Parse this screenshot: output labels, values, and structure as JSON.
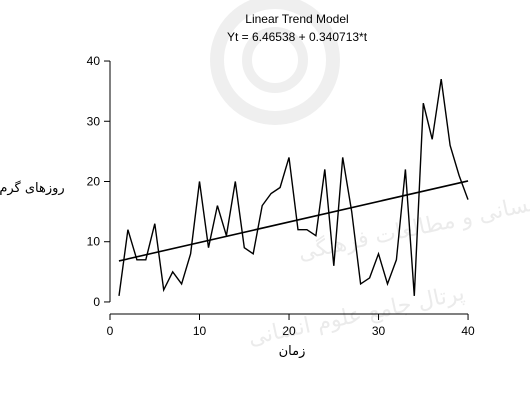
{
  "chart_data": {
    "type": "line",
    "title": "Linear Trend Model",
    "subtitle": "Yt = 6.46538 + 0.340713*t",
    "xlabel": "زمان",
    "ylabel": "روزهای گرم",
    "xlim": [
      0,
      41
    ],
    "ylim": [
      -2,
      41
    ],
    "x_ticks": [
      0,
      10,
      20,
      30,
      40
    ],
    "y_ticks": [
      0,
      10,
      20,
      30,
      40
    ],
    "grid": false,
    "series": [
      {
        "kind": "observed",
        "x": [
          1,
          2,
          3,
          4,
          5,
          6,
          7,
          8,
          9,
          10,
          11,
          12,
          13,
          14,
          15,
          16,
          17,
          18,
          19,
          20,
          21,
          22,
          23,
          24,
          25,
          26,
          27,
          28,
          29,
          30,
          31,
          32,
          33,
          34,
          35,
          36,
          37,
          38,
          39,
          40
        ],
        "y": [
          1,
          12,
          7,
          7,
          13,
          2,
          5,
          3,
          8,
          20,
          9,
          16,
          11,
          20,
          9,
          8,
          16,
          18,
          19,
          24,
          12,
          12,
          11,
          22,
          6,
          24,
          15,
          3,
          4,
          8,
          3,
          7,
          22,
          1,
          33,
          27,
          37,
          26,
          21,
          17
        ]
      },
      {
        "kind": "trend",
        "intercept": 6.46538,
        "slope": 0.340713,
        "x": [
          1,
          40
        ]
      }
    ],
    "colors": {
      "line": "#000000",
      "background": "#ffffff"
    }
  }
}
